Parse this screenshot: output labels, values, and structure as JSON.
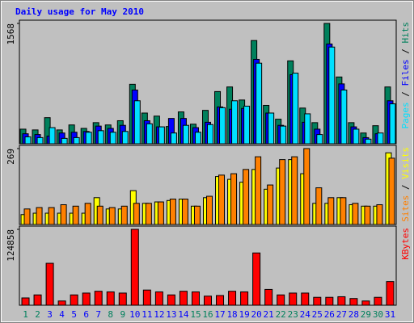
{
  "chart_data": [
    {
      "type": "grouped-bar",
      "title": "Daily usage for May 2010",
      "ylim": [
        0,
        1568
      ],
      "yticks": [
        1568
      ],
      "series": [
        {
          "name": "Hits",
          "color": "#00805c",
          "values": [
            190,
            180,
            340,
            180,
            245,
            200,
            275,
            245,
            300,
            775,
            400,
            360,
            225,
            415,
            255,
            435,
            680,
            740,
            570,
            1345,
            500,
            320,
            1080,
            465,
            275,
            1568,
            870,
            275,
            140,
            235,
            740
          ]
        },
        {
          "name": "Files",
          "color": "#0000ff",
          "values": [
            130,
            120,
            100,
            140,
            150,
            160,
            230,
            200,
            240,
            700,
            300,
            220,
            330,
            330,
            210,
            280,
            480,
            450,
            460,
            1100,
            400,
            240,
            900,
            280,
            190,
            1300,
            780,
            220,
            80,
            130,
            560
          ]
        },
        {
          "name": "Pages",
          "color": "#00e0ff",
          "values": [
            90,
            80,
            210,
            70,
            80,
            150,
            170,
            150,
            160,
            560,
            260,
            220,
            140,
            240,
            150,
            250,
            470,
            560,
            490,
            1050,
            400,
            230,
            920,
            390,
            120,
            1260,
            700,
            190,
            60,
            140,
            520
          ]
        }
      ]
    },
    {
      "type": "grouped-bar",
      "ylim": [
        0,
        269
      ],
      "yticks": [
        269
      ],
      "series": [
        {
          "name": "Visits",
          "color": "#ffff00",
          "values": [
            35,
            40,
            40,
            40,
            40,
            40,
            95,
            55,
            55,
            120,
            75,
            80,
            85,
            90,
            65,
            95,
            170,
            160,
            150,
            195,
            125,
            200,
            230,
            180,
            75,
            75,
            95,
            70,
            65,
            65,
            254
          ]
        },
        {
          "name": "Sites",
          "color": "#ff8000",
          "values": [
            55,
            60,
            60,
            70,
            65,
            75,
            65,
            60,
            65,
            75,
            75,
            80,
            90,
            90,
            65,
            100,
            175,
            180,
            195,
            240,
            140,
            230,
            240,
            269,
            130,
            95,
            95,
            75,
            65,
            70,
            235
          ]
        }
      ]
    },
    {
      "type": "grouped-bar",
      "ylim": [
        0,
        124858
      ],
      "yticks": [
        124858
      ],
      "categories": [
        "1",
        "2",
        "3",
        "4",
        "5",
        "6",
        "7",
        "8",
        "9",
        "10",
        "11",
        "12",
        "13",
        "14",
        "15",
        "16",
        "17",
        "18",
        "19",
        "20",
        "21",
        "22",
        "23",
        "24",
        "25",
        "26",
        "27",
        "28",
        "29",
        "30",
        "31"
      ],
      "category_colors": [
        "#00805c",
        "#00805c",
        "#0000ff",
        "#0000ff",
        "#0000ff",
        "#0000ff",
        "#0000ff",
        "#00805c",
        "#00805c",
        "#0000ff",
        "#0000ff",
        "#0000ff",
        "#0000ff",
        "#0000ff",
        "#00805c",
        "#00805c",
        "#0000ff",
        "#0000ff",
        "#0000ff",
        "#0000ff",
        "#0000ff",
        "#00805c",
        "#00805c",
        "#0000ff",
        "#0000ff",
        "#0000ff",
        "#0000ff",
        "#0000ff",
        "#00805c",
        "#00805c",
        "#0000ff"
      ],
      "series": [
        {
          "name": "KBytes",
          "color": "#ff0000",
          "values": [
            12000,
            17000,
            69000,
            7000,
            17000,
            20000,
            23000,
            22000,
            20000,
            124858,
            25000,
            22000,
            17000,
            23000,
            22000,
            15000,
            16000,
            23000,
            22000,
            86000,
            26000,
            17000,
            20000,
            20000,
            13000,
            13000,
            14000,
            11000,
            7000,
            13000,
            39000
          ]
        }
      ]
    }
  ],
  "legend_separator": " / "
}
